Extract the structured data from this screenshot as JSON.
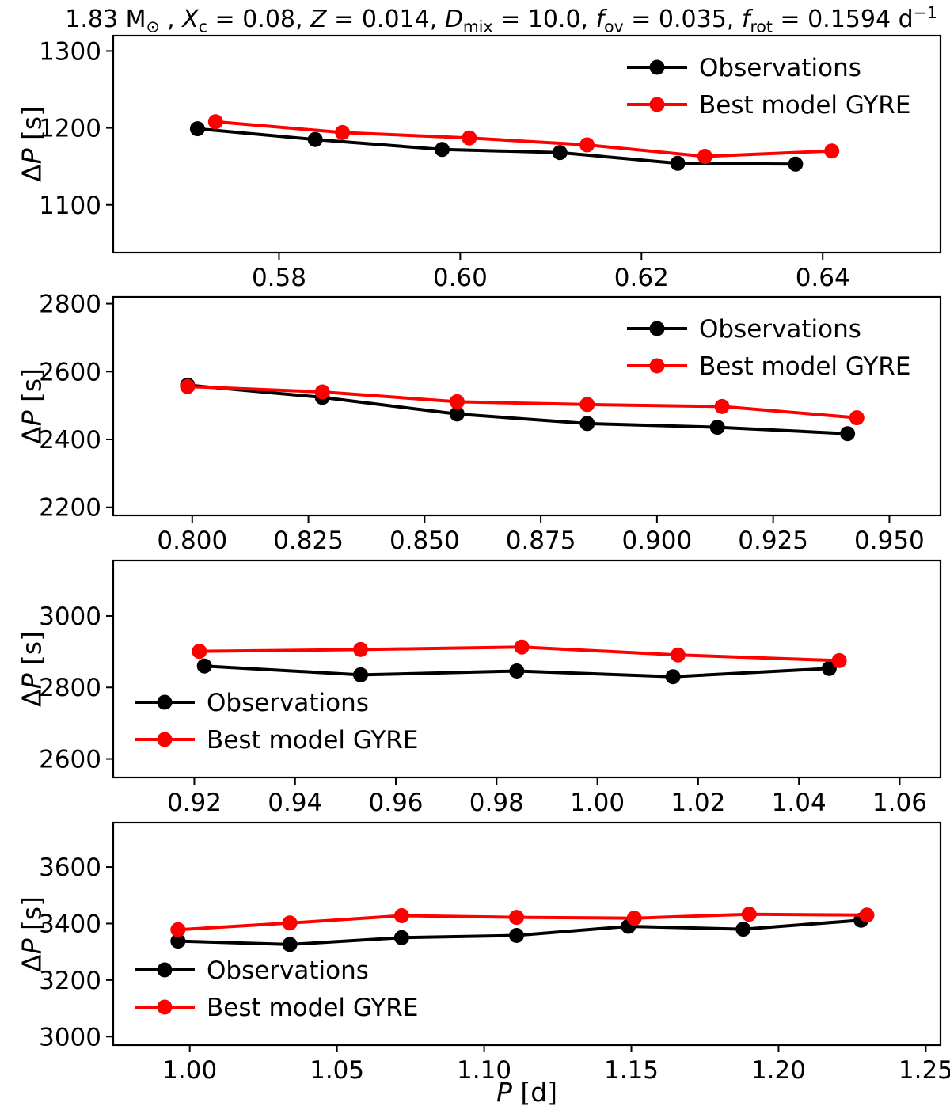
{
  "figure": {
    "title_parts": [
      {
        "t": "1.83 M",
        "s": "n"
      },
      {
        "t": "⊙",
        "s": "sub"
      },
      {
        "t": " , ",
        "s": "n"
      },
      {
        "t": "X",
        "s": "i"
      },
      {
        "t": "c",
        "s": "sub"
      },
      {
        "t": " = 0.08, ",
        "s": "n"
      },
      {
        "t": "Z",
        "s": "i"
      },
      {
        "t": " = 0.014, ",
        "s": "n"
      },
      {
        "t": "D",
        "s": "i"
      },
      {
        "t": "mix",
        "s": "sub"
      },
      {
        "t": " = 10.0, ",
        "s": "n"
      },
      {
        "t": "f",
        "s": "i"
      },
      {
        "t": "ov",
        "s": "sub"
      },
      {
        "t": " = 0.035, ",
        "s": "n"
      },
      {
        "t": "f",
        "s": "i"
      },
      {
        "t": "rot",
        "s": "sub"
      },
      {
        "t": " = 0.1594 d",
        "s": "n"
      },
      {
        "t": "−1",
        "s": "sup"
      }
    ],
    "xlabel_parts": [
      {
        "t": "P",
        "s": "i"
      },
      {
        "t": " [d]",
        "s": "n"
      }
    ],
    "ylabel_parts": [
      {
        "t": "Δ",
        "s": "n"
      },
      {
        "t": "P",
        "s": "i"
      },
      {
        "t": " [s]",
        "s": "n"
      }
    ]
  },
  "colors": {
    "observations": "#000000",
    "best_model": "#ff0000",
    "axis": "#000000",
    "background": "#ffffff"
  },
  "legend": {
    "entries": [
      {
        "label": "Observations",
        "color": "#000000"
      },
      {
        "label": "Best model GYRE",
        "color": "#ff0000"
      }
    ]
  },
  "chart_data": [
    {
      "type": "line",
      "legend_position": "upper right",
      "xlim": [
        0.5617,
        0.653
      ],
      "ylim": [
        1038,
        1320
      ],
      "xtick_values": [
        0.58,
        0.6,
        0.62,
        0.64
      ],
      "xtick_labels": [
        "0.58",
        "0.60",
        "0.62",
        "0.64"
      ],
      "ytick_values": [
        1100,
        1200,
        1300
      ],
      "ytick_labels": [
        "1100",
        "1200",
        "1300"
      ],
      "series": [
        {
          "name": "Observations",
          "color": "#000000",
          "x": [
            0.571,
            0.584,
            0.598,
            0.611,
            0.624,
            0.637
          ],
          "y": [
            1199,
            1185,
            1172,
            1168,
            1154,
            1153
          ]
        },
        {
          "name": "Best model GYRE",
          "color": "#ff0000",
          "x": [
            0.573,
            0.587,
            0.601,
            0.614,
            0.627,
            0.641
          ],
          "y": [
            1208,
            1194,
            1187,
            1178,
            1163,
            1170
          ]
        }
      ]
    },
    {
      "type": "line",
      "legend_position": "upper right",
      "xlim": [
        0.783,
        0.961
      ],
      "ylim": [
        2176,
        2820
      ],
      "xtick_values": [
        0.8,
        0.825,
        0.85,
        0.875,
        0.9,
        0.925,
        0.95
      ],
      "xtick_labels": [
        "0.800",
        "0.825",
        "0.850",
        "0.875",
        "0.900",
        "0.925",
        "0.950"
      ],
      "ytick_values": [
        2200,
        2400,
        2600,
        2800
      ],
      "ytick_labels": [
        "2200",
        "2400",
        "2600",
        "2800"
      ],
      "series": [
        {
          "name": "Observations",
          "color": "#000000",
          "x": [
            0.799,
            0.828,
            0.857,
            0.885,
            0.913,
            0.941
          ],
          "y": [
            2560,
            2524,
            2475,
            2447,
            2436,
            2417
          ]
        },
        {
          "name": "Best model GYRE",
          "color": "#ff0000",
          "x": [
            0.799,
            0.828,
            0.857,
            0.885,
            0.914,
            0.943
          ],
          "y": [
            2556,
            2540,
            2511,
            2503,
            2497,
            2464
          ]
        }
      ]
    },
    {
      "type": "line",
      "legend_position": "lower left",
      "xlim": [
        0.9039,
        1.0681
      ],
      "ylim": [
        2548,
        3155
      ],
      "xtick_values": [
        0.92,
        0.94,
        0.96,
        0.98,
        1.0,
        1.02,
        1.04,
        1.06
      ],
      "xtick_labels": [
        "0.92",
        "0.94",
        "0.96",
        "0.98",
        "1.00",
        "1.02",
        "1.04",
        "1.06"
      ],
      "ytick_values": [
        2600,
        2800,
        3000
      ],
      "ytick_labels": [
        "2600",
        "2800",
        "3000"
      ],
      "series": [
        {
          "name": "Observations",
          "color": "#000000",
          "x": [
            0.922,
            0.953,
            0.984,
            1.015,
            1.046
          ],
          "y": [
            2860,
            2835,
            2846,
            2830,
            2853
          ]
        },
        {
          "name": "Best model GYRE",
          "color": "#ff0000",
          "x": [
            0.921,
            0.953,
            0.985,
            1.016,
            1.048
          ],
          "y": [
            2901,
            2906,
            2913,
            2891,
            2875
          ]
        }
      ]
    },
    {
      "type": "line",
      "legend_position": "lower left",
      "xlim": [
        0.974,
        1.255
      ],
      "ylim": [
        2970,
        3757
      ],
      "xtick_values": [
        1.0,
        1.05,
        1.1,
        1.15,
        1.2,
        1.25
      ],
      "xtick_labels": [
        "1.00",
        "1.05",
        "1.10",
        "1.15",
        "1.20",
        "1.25"
      ],
      "ytick_values": [
        3000,
        3200,
        3400,
        3600
      ],
      "ytick_labels": [
        "3000",
        "3200",
        "3400",
        "3600"
      ],
      "series": [
        {
          "name": "Observations",
          "color": "#000000",
          "x": [
            0.996,
            1.034,
            1.072,
            1.111,
            1.149,
            1.188,
            1.228
          ],
          "y": [
            3338,
            3326,
            3350,
            3358,
            3390,
            3380,
            3412
          ]
        },
        {
          "name": "Best model GYRE",
          "color": "#ff0000",
          "x": [
            0.996,
            1.034,
            1.072,
            1.111,
            1.151,
            1.19,
            1.23
          ],
          "y": [
            3378,
            3402,
            3428,
            3422,
            3419,
            3433,
            3430
          ]
        }
      ]
    }
  ]
}
